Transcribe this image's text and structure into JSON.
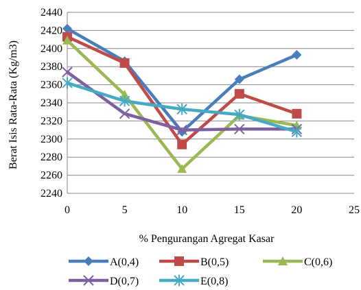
{
  "chart_data": {
    "type": "line",
    "xlabel": "% Pengurangan Agregat Kasar",
    "ylabel": "Berat Isis Rata-Rata (Kg/m3)",
    "xlim": [
      0,
      25
    ],
    "ylim": [
      2240,
      2440
    ],
    "x_ticks": [
      "0",
      "5",
      "10",
      "15",
      "20",
      "25"
    ],
    "y_ticks": [
      "2240",
      "2260",
      "2280",
      "2300",
      "2320",
      "2340",
      "2360",
      "2380",
      "2400",
      "2420",
      "2440"
    ],
    "grid": true,
    "legend_position": "bottom",
    "x": [
      0,
      5,
      10,
      15,
      20
    ],
    "series": [
      {
        "name": "A(0,4)",
        "color": "#4a7ebb",
        "marker": "diamond",
        "values": [
          2422,
          2386,
          2308,
          2366,
          2393
        ]
      },
      {
        "name": "B(0,5)",
        "color": "#be4b48",
        "marker": "square",
        "values": [
          2413,
          2384,
          2294,
          2350,
          2328
        ]
      },
      {
        "name": "C(0,6)",
        "color": "#98b954",
        "marker": "triangle",
        "values": [
          2409,
          2349,
          2267,
          2326,
          2315
        ]
      },
      {
        "name": "D(0,7)",
        "color": "#7d60a0",
        "marker": "x",
        "values": [
          2374,
          2328,
          2310,
          2311,
          2311
        ]
      },
      {
        "name": "E(0,8)",
        "color": "#46aac5",
        "marker": "star",
        "values": [
          2362,
          2342,
          2333,
          2327,
          2308
        ]
      }
    ]
  }
}
